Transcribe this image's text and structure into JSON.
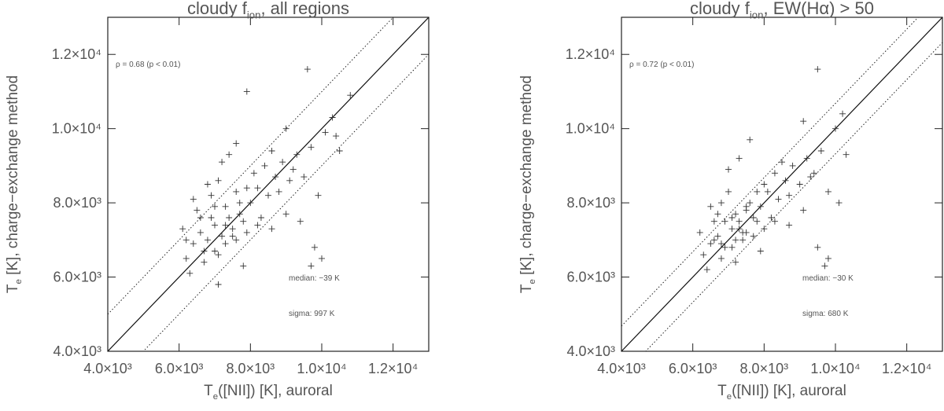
{
  "chart_data": [
    {
      "type": "scatter",
      "title": "cloudy f",
      "title_sub": "ion",
      "title_rest": ", all regions",
      "xlabel": "T",
      "xlabel_sub": "e",
      "xlabel_rest": "([NII]) [K], auroral",
      "ylabel": "T",
      "ylabel_sub": "e",
      "ylabel_rest": " [K], charge−exchange method",
      "annotations": [
        "ρ = 0.68 (p < 0.01)",
        "median:   −39 K",
        "sigma:  997 K"
      ],
      "band": 997,
      "color": "#333333",
      "xlim": [
        4000,
        13000
      ],
      "ylim": [
        4000,
        13000
      ],
      "xticks": [
        {
          "value": 4000,
          "label": "4.0×10³"
        },
        {
          "value": 6000,
          "label": "6.0×10³"
        },
        {
          "value": 8000,
          "label": "8.0×10³"
        },
        {
          "value": 10000,
          "label": "1.0×10⁴"
        },
        {
          "value": 12000,
          "label": "1.2×10⁴"
        }
      ],
      "yticks": [
        {
          "value": 4000,
          "label": "4.0×10³"
        },
        {
          "value": 6000,
          "label": "6.0×10³"
        },
        {
          "value": 8000,
          "label": "8.0×10³"
        },
        {
          "value": 10000,
          "label": "1.0×10⁴"
        },
        {
          "value": 12000,
          "label": "1.2×10⁴"
        }
      ],
      "x": [
        6200,
        6400,
        6600,
        6800,
        7000,
        7200,
        7400,
        6500,
        6900,
        7100,
        7300,
        7500,
        7700,
        7900,
        8100,
        8300,
        8500,
        8700,
        8900,
        9100,
        9300,
        9500,
        9700,
        9900,
        10100,
        10300,
        6300,
        6700,
        7000,
        7300,
        7600,
        7900,
        8200,
        8600,
        9000,
        9400,
        9800,
        10000,
        6600,
        6800,
        7200,
        7400,
        7600,
        7900,
        9600,
        9000,
        10500,
        10800,
        7100,
        7800,
        6100,
        6400,
        7000,
        7600,
        8000,
        8400,
        8800,
        9200,
        6900,
        7300,
        7700,
        8200,
        7500,
        6700,
        7100,
        7800,
        8600,
        9700,
        10400,
        6200
      ],
      "y": [
        6500,
        6900,
        7200,
        7000,
        7400,
        7100,
        7600,
        7800,
        8200,
        8600,
        7900,
        7300,
        8000,
        8400,
        8800,
        7600,
        8200,
        8700,
        9100,
        8600,
        9300,
        8700,
        9500,
        8200,
        9900,
        10300,
        6100,
        6400,
        6700,
        6900,
        7000,
        7200,
        7400,
        7300,
        7700,
        7500,
        6800,
        6500,
        7600,
        8500,
        9100,
        9300,
        9600,
        11000,
        11600,
        10000,
        9400,
        10900,
        5800,
        6300,
        7300,
        8100,
        7900,
        8300,
        8000,
        9000,
        8300,
        8900,
        7600,
        7400,
        7700,
        8400,
        7100,
        6700,
        6600,
        7500,
        9400,
        6300,
        9800,
        7000
      ]
    },
    {
      "type": "scatter",
      "title": "cloudy f",
      "title_sub": "ion",
      "title_rest": ", EW(Hα) > 50",
      "xlabel": "T",
      "xlabel_sub": "e",
      "xlabel_rest": "([NII]) [K], auroral",
      "ylabel": "T",
      "ylabel_sub": "e",
      "ylabel_rest": " [K], charge−exchange method",
      "annotations": [
        "ρ = 0.72 (p < 0.01)",
        "median:   −30 K",
        "sigma:  680 K"
      ],
      "band": 680,
      "color": "#333333",
      "xlim": [
        4000,
        13000
      ],
      "ylim": [
        4000,
        13000
      ],
      "xticks": [
        {
          "value": 4000,
          "label": "4.0×10³"
        },
        {
          "value": 6000,
          "label": "6.0×10³"
        },
        {
          "value": 8000,
          "label": "8.0×10³"
        },
        {
          "value": 10000,
          "label": "1.0×10⁴"
        },
        {
          "value": 12000,
          "label": "1.2×10⁴"
        }
      ],
      "yticks": [
        {
          "value": 4000,
          "label": "4.0×10³"
        },
        {
          "value": 6000,
          "label": "6.0×10³"
        },
        {
          "value": 8000,
          "label": "8.0×10³"
        },
        {
          "value": 10000,
          "label": "1.0×10⁴"
        },
        {
          "value": 12000,
          "label": "1.2×10⁴"
        }
      ],
      "x": [
        6300,
        6500,
        6700,
        6900,
        7100,
        7300,
        7500,
        6600,
        6800,
        7000,
        7200,
        7400,
        7600,
        7800,
        8000,
        8200,
        8400,
        8600,
        8800,
        9000,
        9200,
        9400,
        9600,
        9800,
        10000,
        10200,
        6400,
        6800,
        7100,
        7400,
        7700,
        8000,
        8300,
        8700,
        9100,
        9500,
        9800,
        6700,
        7000,
        7300,
        7600,
        9500,
        9100,
        10300,
        10100,
        7200,
        7900,
        6200,
        6500,
        7100,
        7500,
        7900,
        8300,
        8700,
        9300,
        6900,
        7300,
        7700,
        8100,
        7500,
        6800,
        7200,
        7800,
        8500,
        9700,
        6600
      ],
      "y": [
        6600,
        6900,
        7100,
        6800,
        7300,
        7500,
        7800,
        7500,
        8000,
        8300,
        7700,
        7200,
        8000,
        8300,
        8500,
        7600,
        8100,
        8600,
        9000,
        8500,
        9200,
        8800,
        9400,
        8300,
        10000,
        10400,
        6200,
        6500,
        6800,
        7000,
        7100,
        7300,
        7500,
        7400,
        7800,
        6800,
        6500,
        7700,
        8900,
        9200,
        9700,
        11600,
        10200,
        9300,
        8000,
        6400,
        6700,
        7200,
        7900,
        7600,
        7900,
        7900,
        8800,
        8200,
        8700,
        7500,
        7300,
        7600,
        8300,
        7200,
        6900,
        7000,
        7500,
        9100,
        6300,
        7000
      ]
    }
  ]
}
